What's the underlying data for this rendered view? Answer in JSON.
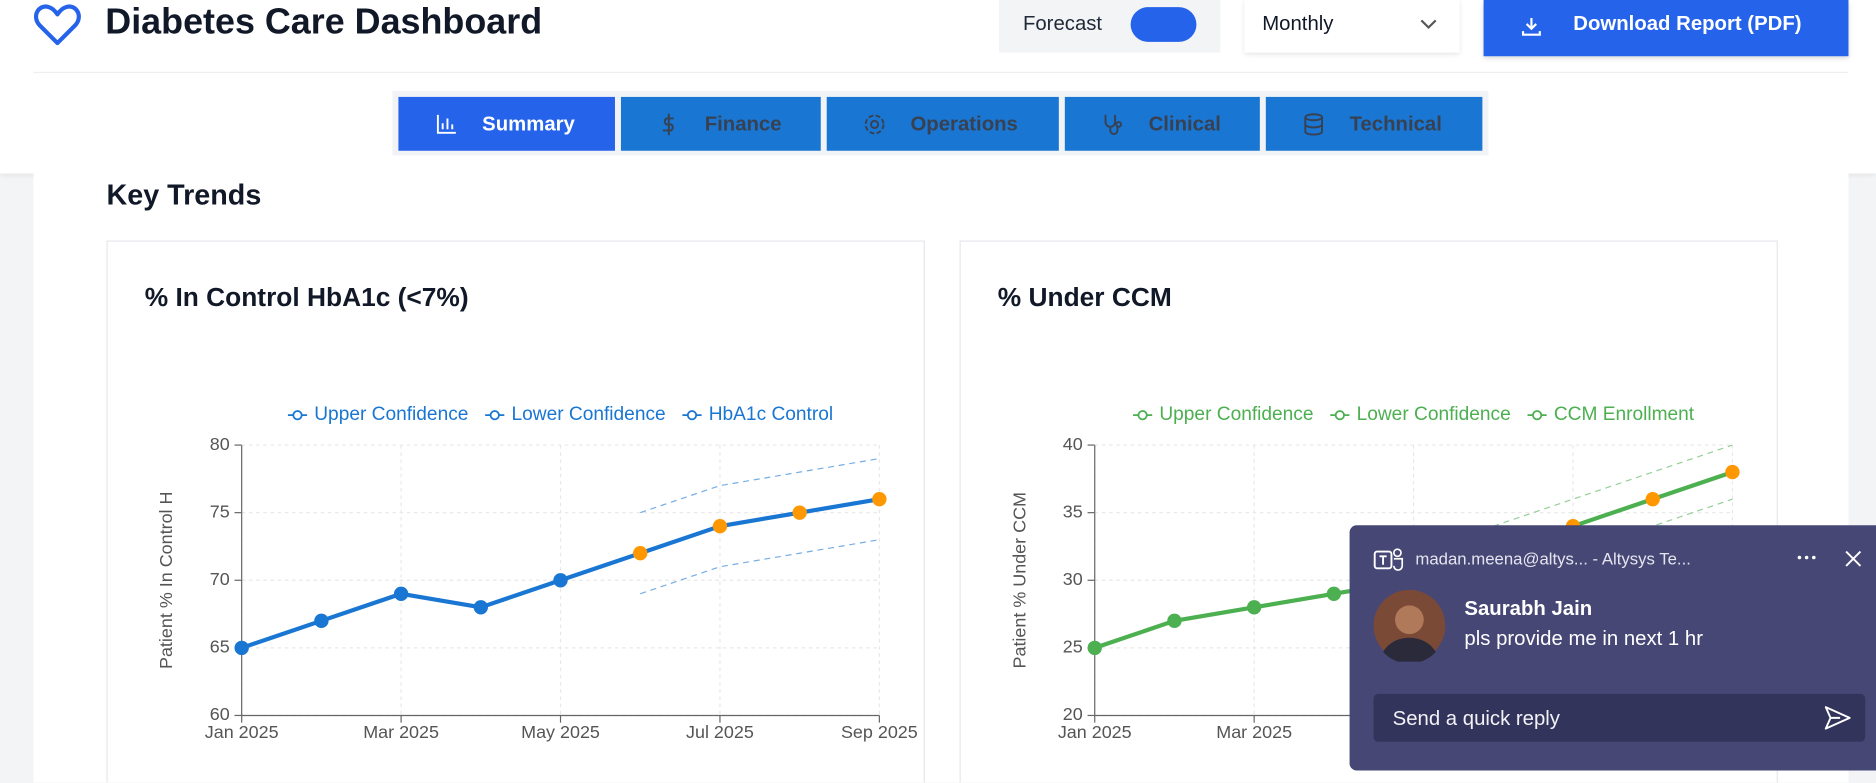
{
  "header": {
    "title": "Diabetes Care Dashboard",
    "forecast_label": "Forecast",
    "forecast_on": true,
    "period": "Monthly",
    "download": "Download Report (PDF)"
  },
  "tabs": [
    "Summary",
    "Finance",
    "Operations",
    "Clinical",
    "Technical"
  ],
  "active_tab": 0,
  "section_title": "Key Trends",
  "chart_data": [
    {
      "type": "line",
      "title": "% In Control HbA1c (<7%)",
      "y_label": "Patient % In Control H",
      "categories": [
        "Jan 2025",
        null,
        "Mar 2025",
        null,
        "May 2025",
        null,
        "Jul 2025",
        null,
        "Sep 2025"
      ],
      "series": [
        {
          "name": "Upper Confidence",
          "color": "#1976d2",
          "dashed": true,
          "values": [
            null,
            null,
            null,
            null,
            null,
            75,
            77,
            78,
            79
          ]
        },
        {
          "name": "Lower Confidence",
          "color": "#1976d2",
          "dashed": true,
          "values": [
            null,
            null,
            null,
            null,
            null,
            69,
            71,
            72,
            73
          ]
        },
        {
          "name": "HbA1c Control",
          "color": "#1976d2",
          "dashed": false,
          "values": [
            65,
            67,
            69,
            68,
            70,
            72,
            74,
            75,
            76
          ],
          "marker_colors": [
            "#1976d2",
            "#1976d2",
            "#1976d2",
            "#1976d2",
            "#1976d2",
            "#ff9800",
            "#ff9800",
            "#ff9800",
            "#ff9800"
          ]
        }
      ],
      "ylim": [
        60,
        80
      ],
      "yticks": [
        60,
        65,
        70,
        75,
        80
      ],
      "grid": true
    },
    {
      "type": "line",
      "title": "% Under CCM",
      "y_label": "Patient % Under CCM",
      "categories": [
        "Jan 2025",
        null,
        "Mar 2025",
        null,
        "May 2025",
        null,
        "Jul 2025",
        null,
        "Sep 2025"
      ],
      "series": [
        {
          "name": "Upper Confidence",
          "color": "#4caf50",
          "dashed": true,
          "values": [
            null,
            null,
            null,
            null,
            null,
            34,
            36,
            38,
            40
          ]
        },
        {
          "name": "Lower Confidence",
          "color": "#4caf50",
          "dashed": true,
          "values": [
            null,
            null,
            null,
            null,
            null,
            30,
            32,
            34,
            36
          ]
        },
        {
          "name": "CCM Enrollment",
          "color": "#4caf50",
          "dashed": false,
          "values": [
            25,
            27,
            28,
            29,
            30,
            32,
            34,
            36,
            38
          ],
          "marker_colors": [
            "#4caf50",
            "#4caf50",
            "#4caf50",
            "#4caf50",
            "#4caf50",
            "#ff9800",
            "#ff9800",
            "#ff9800",
            "#ff9800"
          ]
        }
      ],
      "ylim": [
        20,
        40
      ],
      "yticks": [
        20,
        25,
        30,
        35,
        40
      ],
      "grid": true
    }
  ],
  "notification": {
    "account": "madan.meena@altys... - Altysys Te...",
    "sender": "Saurabh Jain",
    "message": "pls provide me in next 1 hr",
    "reply_placeholder": "Send a quick reply"
  }
}
